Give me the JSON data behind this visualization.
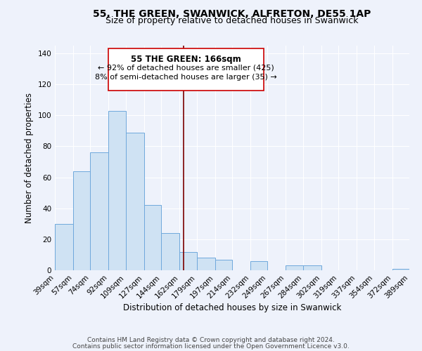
{
  "title": "55, THE GREEN, SWANWICK, ALFRETON, DE55 1AP",
  "subtitle": "Size of property relative to detached houses in Swanwick",
  "xlabel": "Distribution of detached houses by size in Swanwick",
  "ylabel": "Number of detached properties",
  "bar_edges": [
    39,
    57,
    74,
    92,
    109,
    127,
    144,
    162,
    179,
    197,
    214,
    232,
    249,
    267,
    284,
    302,
    319,
    337,
    354,
    372,
    389
  ],
  "bar_heights": [
    30,
    64,
    76,
    103,
    89,
    42,
    24,
    12,
    8,
    7,
    0,
    6,
    0,
    3,
    3,
    0,
    0,
    0,
    0,
    1
  ],
  "tick_labels": [
    "39sqm",
    "57sqm",
    "74sqm",
    "92sqm",
    "109sqm",
    "127sqm",
    "144sqm",
    "162sqm",
    "179sqm",
    "197sqm",
    "214sqm",
    "232sqm",
    "249sqm",
    "267sqm",
    "284sqm",
    "302sqm",
    "319sqm",
    "337sqm",
    "354sqm",
    "372sqm",
    "389sqm"
  ],
  "bar_color": "#cfe2f3",
  "bar_edge_color": "#6fa8dc",
  "background_color": "#eef2fb",
  "grid_color": "#ffffff",
  "vline_x": 166,
  "vline_color": "#7b0000",
  "annotation_title": "55 THE GREEN: 166sqm",
  "annotation_line1": "← 92% of detached houses are smaller (425)",
  "annotation_line2": "8% of semi-detached houses are larger (35) →",
  "annotation_box_color": "#ffffff",
  "annotation_box_edge_color": "#cc0000",
  "ylim": [
    0,
    145
  ],
  "yticks": [
    0,
    20,
    40,
    60,
    80,
    100,
    120,
    140
  ],
  "footer1": "Contains HM Land Registry data © Crown copyright and database right 2024.",
  "footer2": "Contains public sector information licensed under the Open Government Licence v3.0.",
  "title_fontsize": 10,
  "subtitle_fontsize": 9,
  "axis_label_fontsize": 8.5,
  "tick_fontsize": 7.5,
  "annotation_title_fontsize": 8.5,
  "annotation_fontsize": 8,
  "footer_fontsize": 6.5
}
